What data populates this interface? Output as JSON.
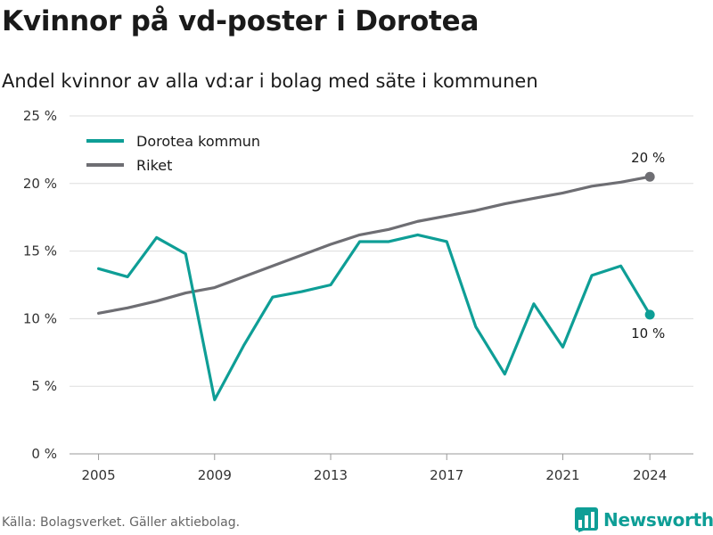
{
  "title": "Kvinnor på vd-poster i Dorotea",
  "subtitle": "Andel kvinnor av alla vd:ar i bolag med säte i kommunen",
  "source": "Källa: Bolagsverket. Gäller aktiebolag.",
  "brand": "Newsworthy",
  "colors": {
    "dorotea": "#0e9e96",
    "riket": "#6e6e73",
    "grid": "#dddddd",
    "brand": "#0e9e96"
  },
  "chart_data": {
    "type": "line",
    "title": "Kvinnor på vd-poster i Dorotea",
    "subtitle": "Andel kvinnor av alla vd:ar i bolag med säte i kommunen",
    "xlabel": "",
    "ylabel": "",
    "x": [
      2005,
      2006,
      2007,
      2008,
      2009,
      2010,
      2011,
      2012,
      2013,
      2014,
      2015,
      2016,
      2017,
      2018,
      2019,
      2020,
      2021,
      2022,
      2023,
      2024
    ],
    "x_ticks": [
      2005,
      2009,
      2013,
      2017,
      2021,
      2024
    ],
    "y_ticks": [
      0,
      5,
      10,
      15,
      20,
      25
    ],
    "y_tick_labels": [
      "0 %",
      "5 %",
      "10 %",
      "15 %",
      "20 %",
      "25 %"
    ],
    "ylim": [
      0,
      25
    ],
    "grid": true,
    "legend_position": "top-left",
    "series": [
      {
        "name": "Dorotea kommun",
        "color": "#0e9e96",
        "end_label": "10 %",
        "values": [
          13.7,
          13.1,
          16.0,
          14.8,
          4.0,
          8.0,
          11.6,
          12.0,
          12.5,
          15.7,
          15.7,
          16.2,
          15.7,
          9.4,
          5.9,
          11.1,
          7.9,
          13.2,
          13.9,
          10.3
        ]
      },
      {
        "name": "Riket",
        "color": "#6e6e73",
        "end_label": "20 %",
        "values": [
          10.4,
          10.8,
          11.3,
          11.9,
          12.3,
          13.1,
          13.9,
          14.7,
          15.5,
          16.2,
          16.6,
          17.2,
          17.6,
          18.0,
          18.5,
          18.9,
          19.3,
          19.8,
          20.1,
          20.5
        ]
      }
    ]
  }
}
